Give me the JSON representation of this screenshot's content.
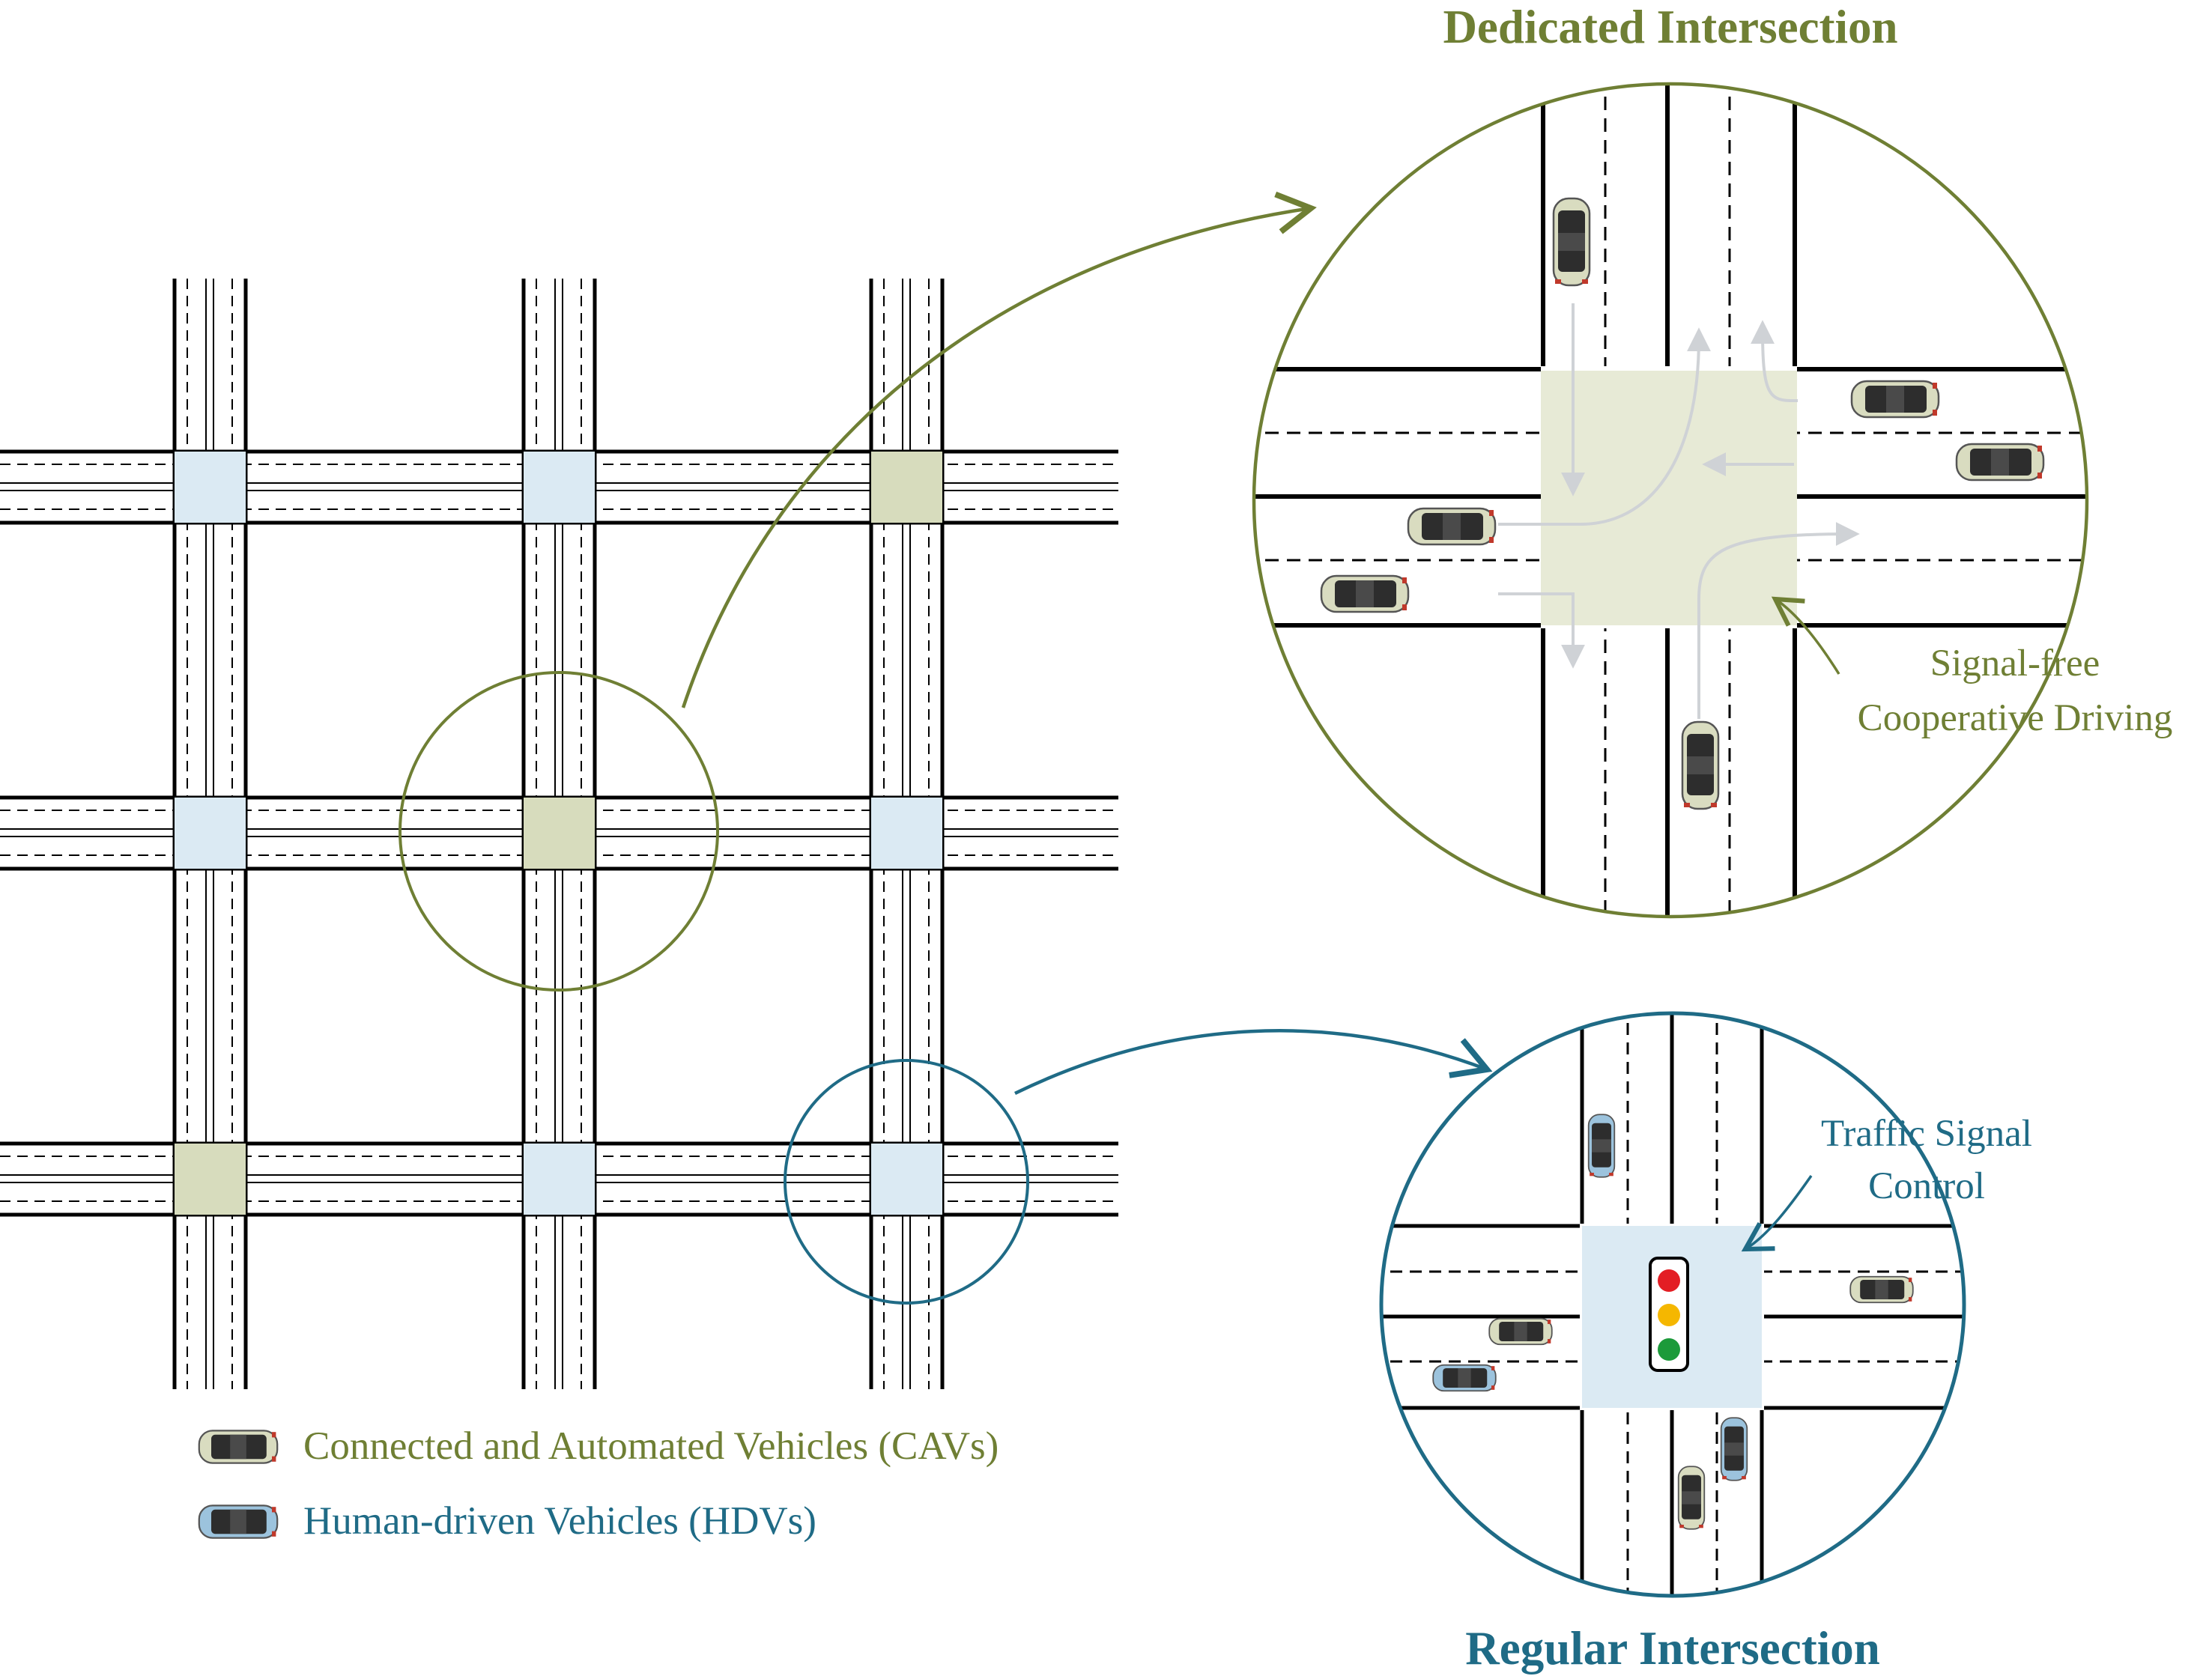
{
  "titles": {
    "dedicated": "Dedicated Intersection",
    "regular": "Regular Intersection"
  },
  "annotations": {
    "signal_free_line1": "Signal-free",
    "signal_free_line2": "Cooperative Driving",
    "traffic_signal_line1": "Traffic Signal",
    "traffic_signal_line2": "Control"
  },
  "legend": {
    "cav_label": "Connected and Automated Vehicles (CAVs)",
    "hdv_label": "Human-driven Vehicles (HDVs)"
  },
  "colors": {
    "dedicated_olive": "#6f7f34",
    "regular_teal": "#1f6b86",
    "dedicated_box": "#e7ead6",
    "dedicated_box_grid": "#d7dcbd",
    "regular_box": "#dbeaf3",
    "cav_body": "#d9dcc0",
    "hdv_body": "#9cc3dd",
    "flow_arrow": "#cfd2d6",
    "signal_red": "#e31e24",
    "signal_yellow": "#f5b700",
    "signal_green": "#1c9a3a"
  }
}
